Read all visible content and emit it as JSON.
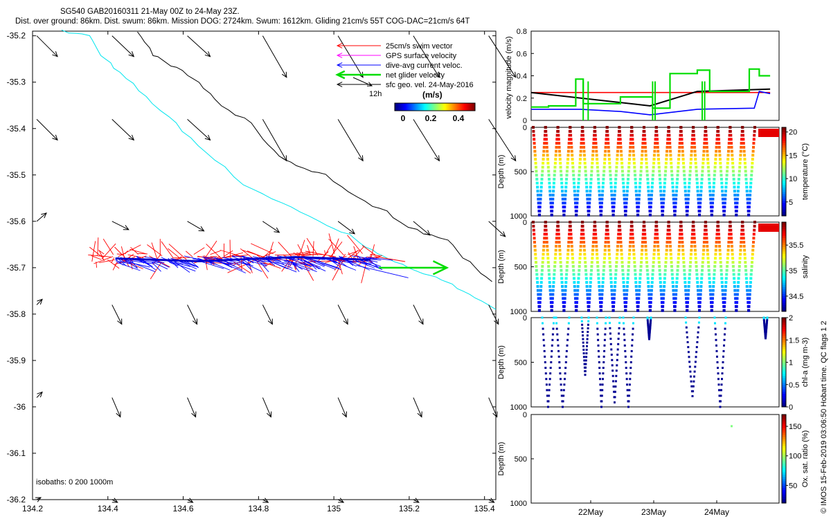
{
  "title": {
    "line1": "SG540 GAB20160311 21-May 00Z to 24-May 23Z.",
    "line2": "Dist. over ground: 86km. Dist. swum: 86km. Mission DOG: 2724km. Swum: 1612km. Gliding 21cm/s 55T COG-DAC=21cm/s 64T"
  },
  "legend": {
    "items": [
      {
        "label": "25cm/s swim vector",
        "color": "#ff0000"
      },
      {
        "label": "GPS surface velocity",
        "color": "#ff00ff"
      },
      {
        "label": "dive-avg current veloc.",
        "color": "#0000ff"
      },
      {
        "label": "net glider velocity",
        "color": "#00dd00"
      },
      {
        "label": "sfc geo. vel. 24-May-2016",
        "color": "#000000"
      }
    ],
    "time_tick": "12h",
    "unit": "(m/s)",
    "colorbar_ticks": [
      "0",
      "0.2",
      "0.4"
    ]
  },
  "isobaths_label": "isobaths: 0   200   1000m",
  "credit": "© IMOS 15-Feb-2019 03:06:50 Hobart time. QC flags 1  2",
  "chart_data": [
    {
      "type": "scatter",
      "panel": "map",
      "x_ticks": [
        "134.2",
        "134.4",
        "134.6",
        "134.8",
        "135",
        "135.2",
        "135.4"
      ],
      "y_ticks": [
        "-35.2",
        "-35.3",
        "-35.4",
        "-35.5",
        "-35.6",
        "-35.7",
        "-35.8",
        "-35.9",
        "-36",
        "-36.1",
        "-36.2"
      ],
      "xlim": [
        134.2,
        135.43
      ],
      "ylim": [
        -36.2,
        -35.19
      ],
      "track": {
        "lat": -35.68,
        "lon_start": 134.42,
        "lon_end": 135.17
      },
      "net_velocity": {
        "lon_start": 135.12,
        "lon_end": 135.3,
        "lat": -35.7
      },
      "isobath_0": [
        [
          134.28,
          -35.19
        ],
        [
          134.35,
          -35.2
        ],
        [
          134.38,
          -35.24
        ],
        [
          134.43,
          -35.28
        ],
        [
          134.5,
          -35.33
        ],
        [
          134.58,
          -35.39
        ],
        [
          134.66,
          -35.45
        ],
        [
          134.76,
          -35.52
        ],
        [
          134.86,
          -35.56
        ],
        [
          134.96,
          -35.6
        ],
        [
          135.04,
          -35.63
        ],
        [
          135.1,
          -35.66
        ],
        [
          135.16,
          -35.69
        ],
        [
          135.24,
          -35.71
        ],
        [
          135.3,
          -35.73
        ],
        [
          135.36,
          -35.76
        ],
        [
          135.43,
          -35.79
        ]
      ],
      "isobath_1000": [
        [
          134.48,
          -35.19
        ],
        [
          134.52,
          -35.24
        ],
        [
          134.58,
          -35.27
        ],
        [
          134.64,
          -35.3
        ],
        [
          134.7,
          -35.35
        ],
        [
          134.78,
          -35.39
        ],
        [
          134.84,
          -35.45
        ],
        [
          134.9,
          -35.48
        ],
        [
          134.98,
          -35.5
        ],
        [
          135.06,
          -35.55
        ],
        [
          135.14,
          -35.58
        ],
        [
          135.22,
          -35.62
        ],
        [
          135.3,
          -35.64
        ],
        [
          135.36,
          -35.69
        ],
        [
          135.42,
          -35.73
        ]
      ]
    },
    {
      "type": "line",
      "panel": "velocity",
      "ylabel": "velocity magnitude (m/s)",
      "y_ticks": [
        "0",
        "0.2",
        "0.4",
        "0.6",
        "0.8"
      ],
      "ylim": [
        0,
        0.8
      ],
      "xlim": [
        0,
        5
      ],
      "series": [
        {
          "color": "#ff0000",
          "x": [
            0,
            4.82
          ],
          "y": [
            0.25,
            0.25
          ]
        },
        {
          "color": "#000000",
          "x": [
            0,
            2.4,
            3.35,
            4.82
          ],
          "y": [
            0.25,
            0.13,
            0.26,
            0.28
          ]
        },
        {
          "color": "#0000ff",
          "x": [
            0,
            1.0,
            1.8,
            2.4,
            3.35,
            4.5,
            4.6,
            4.82
          ],
          "y": [
            0.1,
            0.1,
            0.08,
            0.05,
            0.1,
            0.11,
            0.26,
            0.24
          ]
        },
        {
          "color": "#00dd00",
          "x": [
            0,
            0.35,
            0.9,
            1.05,
            1.8,
            2.45,
            2.8,
            3.35,
            3.6,
            4.4,
            4.6,
            4.82
          ],
          "y": [
            0.12,
            0.13,
            0.37,
            0.15,
            0.21,
            0.11,
            0.42,
            0.45,
            0.26,
            0.46,
            0.4,
            0.4
          ]
        }
      ]
    },
    {
      "type": "scatter",
      "panel": "temperature",
      "ylabel": "Depth (m)",
      "cbar_label": "temperature (°C)",
      "y_ticks": [
        "0",
        "500",
        "1000"
      ],
      "cbar_ticks": [
        "5",
        "10",
        "15",
        "20"
      ],
      "dives": 18,
      "max_depth": 1000
    },
    {
      "type": "scatter",
      "panel": "salinity",
      "ylabel": "Depth (m)",
      "cbar_label": "salinity",
      "y_ticks": [
        "0",
        "500",
        "1000"
      ],
      "cbar_ticks": [
        "34.5",
        "35",
        "35.5"
      ],
      "dives": 18,
      "max_depth": 1000
    },
    {
      "type": "scatter",
      "panel": "chla",
      "ylabel": "Depth (m)",
      "cbar_label": "chl-a (mg m-3)",
      "y_ticks": [
        "0",
        "500",
        "1000"
      ],
      "cbar_ticks": [
        "0",
        "0.5",
        "1",
        "1.5",
        "2"
      ],
      "max_depth": 1000
    },
    {
      "type": "scatter",
      "panel": "oxygen",
      "ylabel": "Depth (m)",
      "cbar_label": "Ox. sat. ratio (%)",
      "y_ticks": [
        "0",
        "500",
        "1000"
      ],
      "cbar_ticks": [
        "50",
        "100",
        "150"
      ],
      "x_ticks": [
        "22May",
        "23May",
        "24May"
      ],
      "max_depth": 1000
    }
  ]
}
